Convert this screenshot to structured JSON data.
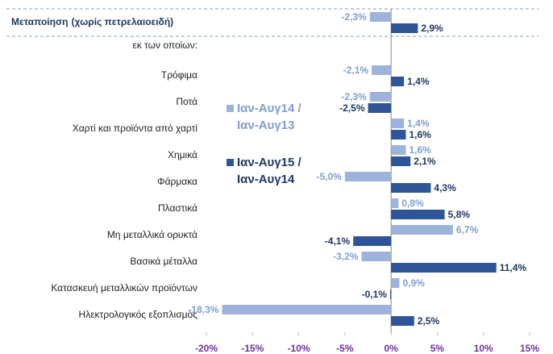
{
  "chart_data": {
    "type": "hbar",
    "categories": [
      "Μεταποίηση",
      "εκ των οποίων:",
      "Τρόφιμα",
      "Ποτά",
      "Χαρτί και προϊόντα από χαρτί",
      "Χημικά",
      "Φάρμακα",
      "Πλαστικά",
      "Μη μεταλλικά ορυκτά",
      "Βασικά μέταλλα",
      "Κατασκευή μεταλλικών προϊόντων",
      "Ηλεκτρολογικός εξοπλισμός"
    ],
    "category_note": "(χωρίς πετρελαιοειδή)",
    "series": [
      {
        "name": "Ιαν-Αυγ14 / Ιαν-Αυγ13",
        "color": "#9db3dc",
        "label_color": "#7f9fd0",
        "values": [
          -2.3,
          null,
          -2.1,
          -2.3,
          1.4,
          1.6,
          -5.0,
          0.8,
          6.7,
          -3.2,
          0.9,
          -18.3
        ],
        "value_labels": [
          "-2,3%",
          null,
          "-2,1%",
          "-2,3%",
          "1,4%",
          "1,6%",
          "-5,0%",
          "0,8%",
          "6,7%",
          "-3,2%",
          "0,9%",
          "-18,3%"
        ]
      },
      {
        "name": "Ιαν-Αυγ15 / Ιαν-Αυγ14",
        "color": "#2e5597",
        "label_color": "#1f3864",
        "values": [
          2.9,
          null,
          1.4,
          -2.5,
          1.6,
          2.1,
          4.3,
          5.8,
          -4.1,
          11.4,
          -0.1,
          2.5
        ],
        "value_labels": [
          "2,9%",
          null,
          "1,4%",
          "-2,5%",
          "1,6%",
          "2,1%",
          "4,3%",
          "5,8%",
          "-4,1%",
          "11,4%",
          "-0,1%",
          "2,5%"
        ]
      }
    ],
    "xlim": [
      -20,
      15
    ],
    "xticks": [
      {
        "value": -20,
        "label": "-20%"
      },
      {
        "value": -15,
        "label": "-15%"
      },
      {
        "value": -10,
        "label": "-10%"
      },
      {
        "value": -5,
        "label": "-5%"
      },
      {
        "value": 0,
        "label": "0%"
      },
      {
        "value": 5,
        "label": "5%"
      },
      {
        "value": 10,
        "label": "10%"
      },
      {
        "value": 15,
        "label": "15%"
      }
    ],
    "tick_color": "#7030a0"
  }
}
